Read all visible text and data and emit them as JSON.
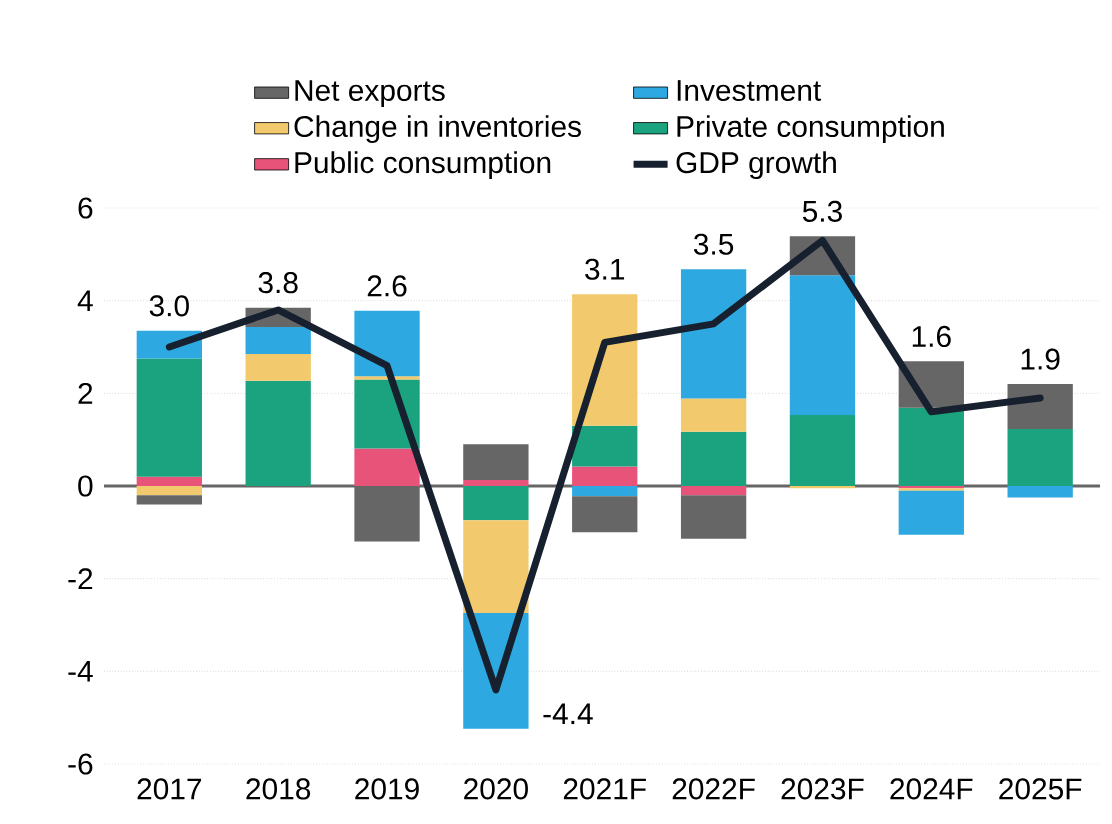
{
  "chart_data": {
    "type": "bar",
    "stacked": true,
    "categories": [
      "2017",
      "2018",
      "2019",
      "2020",
      "2021F",
      "2022F",
      "2023F",
      "2024F",
      "2025F"
    ],
    "series": [
      {
        "name": "Public consumption",
        "color": "#e8537a",
        "values": [
          0.2,
          0,
          0.81,
          0.13,
          0.42,
          -0.2,
          0,
          -0.05,
          0
        ]
      },
      {
        "name": "Private consumption",
        "color": "#1aa37e",
        "values": [
          2.55,
          2.27,
          1.49,
          -0.74,
          0.88,
          1.17,
          1.53,
          1.69,
          1.23
        ]
      },
      {
        "name": "Change in inventories",
        "color": "#f2c96c",
        "values": [
          -0.2,
          0.58,
          0.07,
          -2.0,
          2.84,
          0.72,
          -0.05,
          -0.05,
          0
        ]
      },
      {
        "name": "Investment",
        "color": "#2ea8e0",
        "values": [
          0.6,
          0.58,
          1.41,
          -2.5,
          -0.22,
          2.79,
          3.02,
          -0.95,
          -0.25
        ]
      },
      {
        "name": "Net exports",
        "color": "#666666",
        "values": [
          -0.2,
          0.42,
          -1.2,
          0.77,
          -0.78,
          -0.94,
          0.84,
          1.0,
          0.97
        ]
      },
      {
        "name": "GDP growth",
        "type": "line",
        "color": "#16202e",
        "values": [
          3.0,
          3.8,
          2.6,
          -4.4,
          3.1,
          3.5,
          5.3,
          1.6,
          1.9
        ],
        "value_labels": [
          "3.0",
          "3.8",
          "2.6",
          "-4.4",
          "3.1",
          "3.5",
          "5.3",
          "1.6",
          "1.9"
        ]
      }
    ],
    "ylim": [
      -6,
      6
    ],
    "yticks": [
      -6,
      -4,
      -2,
      0,
      2,
      4,
      6
    ],
    "grid": "y",
    "legend": "top"
  }
}
